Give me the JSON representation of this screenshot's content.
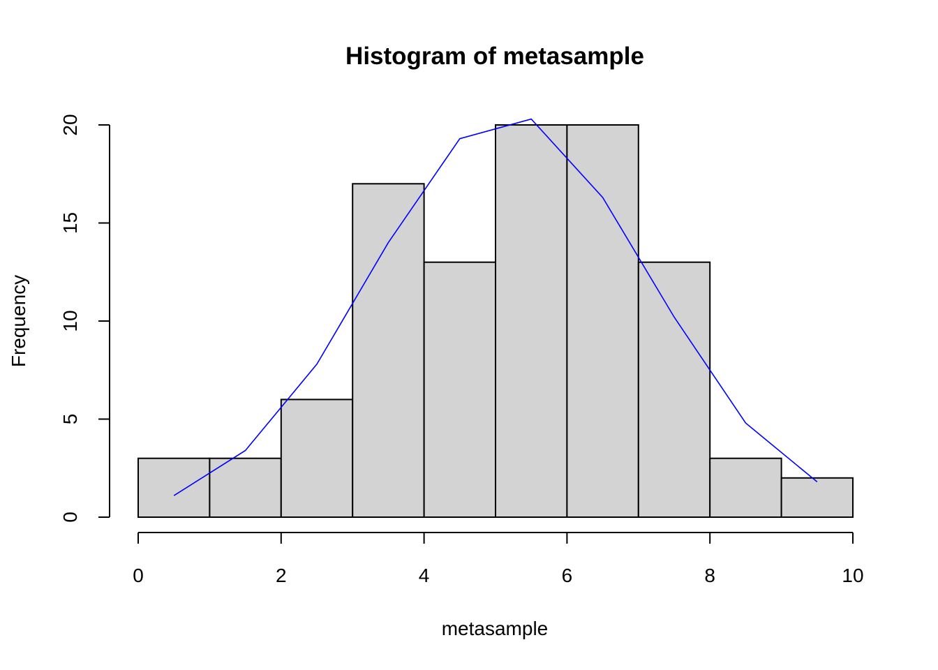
{
  "chart_data": {
    "type": "bar",
    "subtype": "histogram",
    "title": "Histogram of metasample",
    "xlabel": "metasample",
    "ylabel": "Frequency",
    "bin_edges": [
      0,
      1,
      2,
      3,
      4,
      5,
      6,
      7,
      8,
      9,
      10
    ],
    "values": [
      3,
      3,
      6,
      17,
      13,
      20,
      20,
      13,
      3,
      2
    ],
    "xlim": [
      0,
      10
    ],
    "ylim": [
      0,
      20
    ],
    "xticks": [
      "0",
      "2",
      "4",
      "6",
      "8",
      "10"
    ],
    "yticks": [
      "0",
      "5",
      "10",
      "15",
      "20"
    ],
    "bar_color": "#d3d3d3",
    "overlay_line": {
      "color": "#0000ff",
      "x": [
        0.5,
        1.5,
        2.5,
        3.5,
        4.5,
        5.5,
        6.5,
        7.5,
        8.5,
        9.5
      ],
      "y": [
        1.1,
        3.4,
        7.8,
        14.0,
        19.3,
        20.3,
        16.3,
        10.2,
        4.8,
        1.8
      ]
    },
    "grid": false,
    "legend": "none"
  }
}
